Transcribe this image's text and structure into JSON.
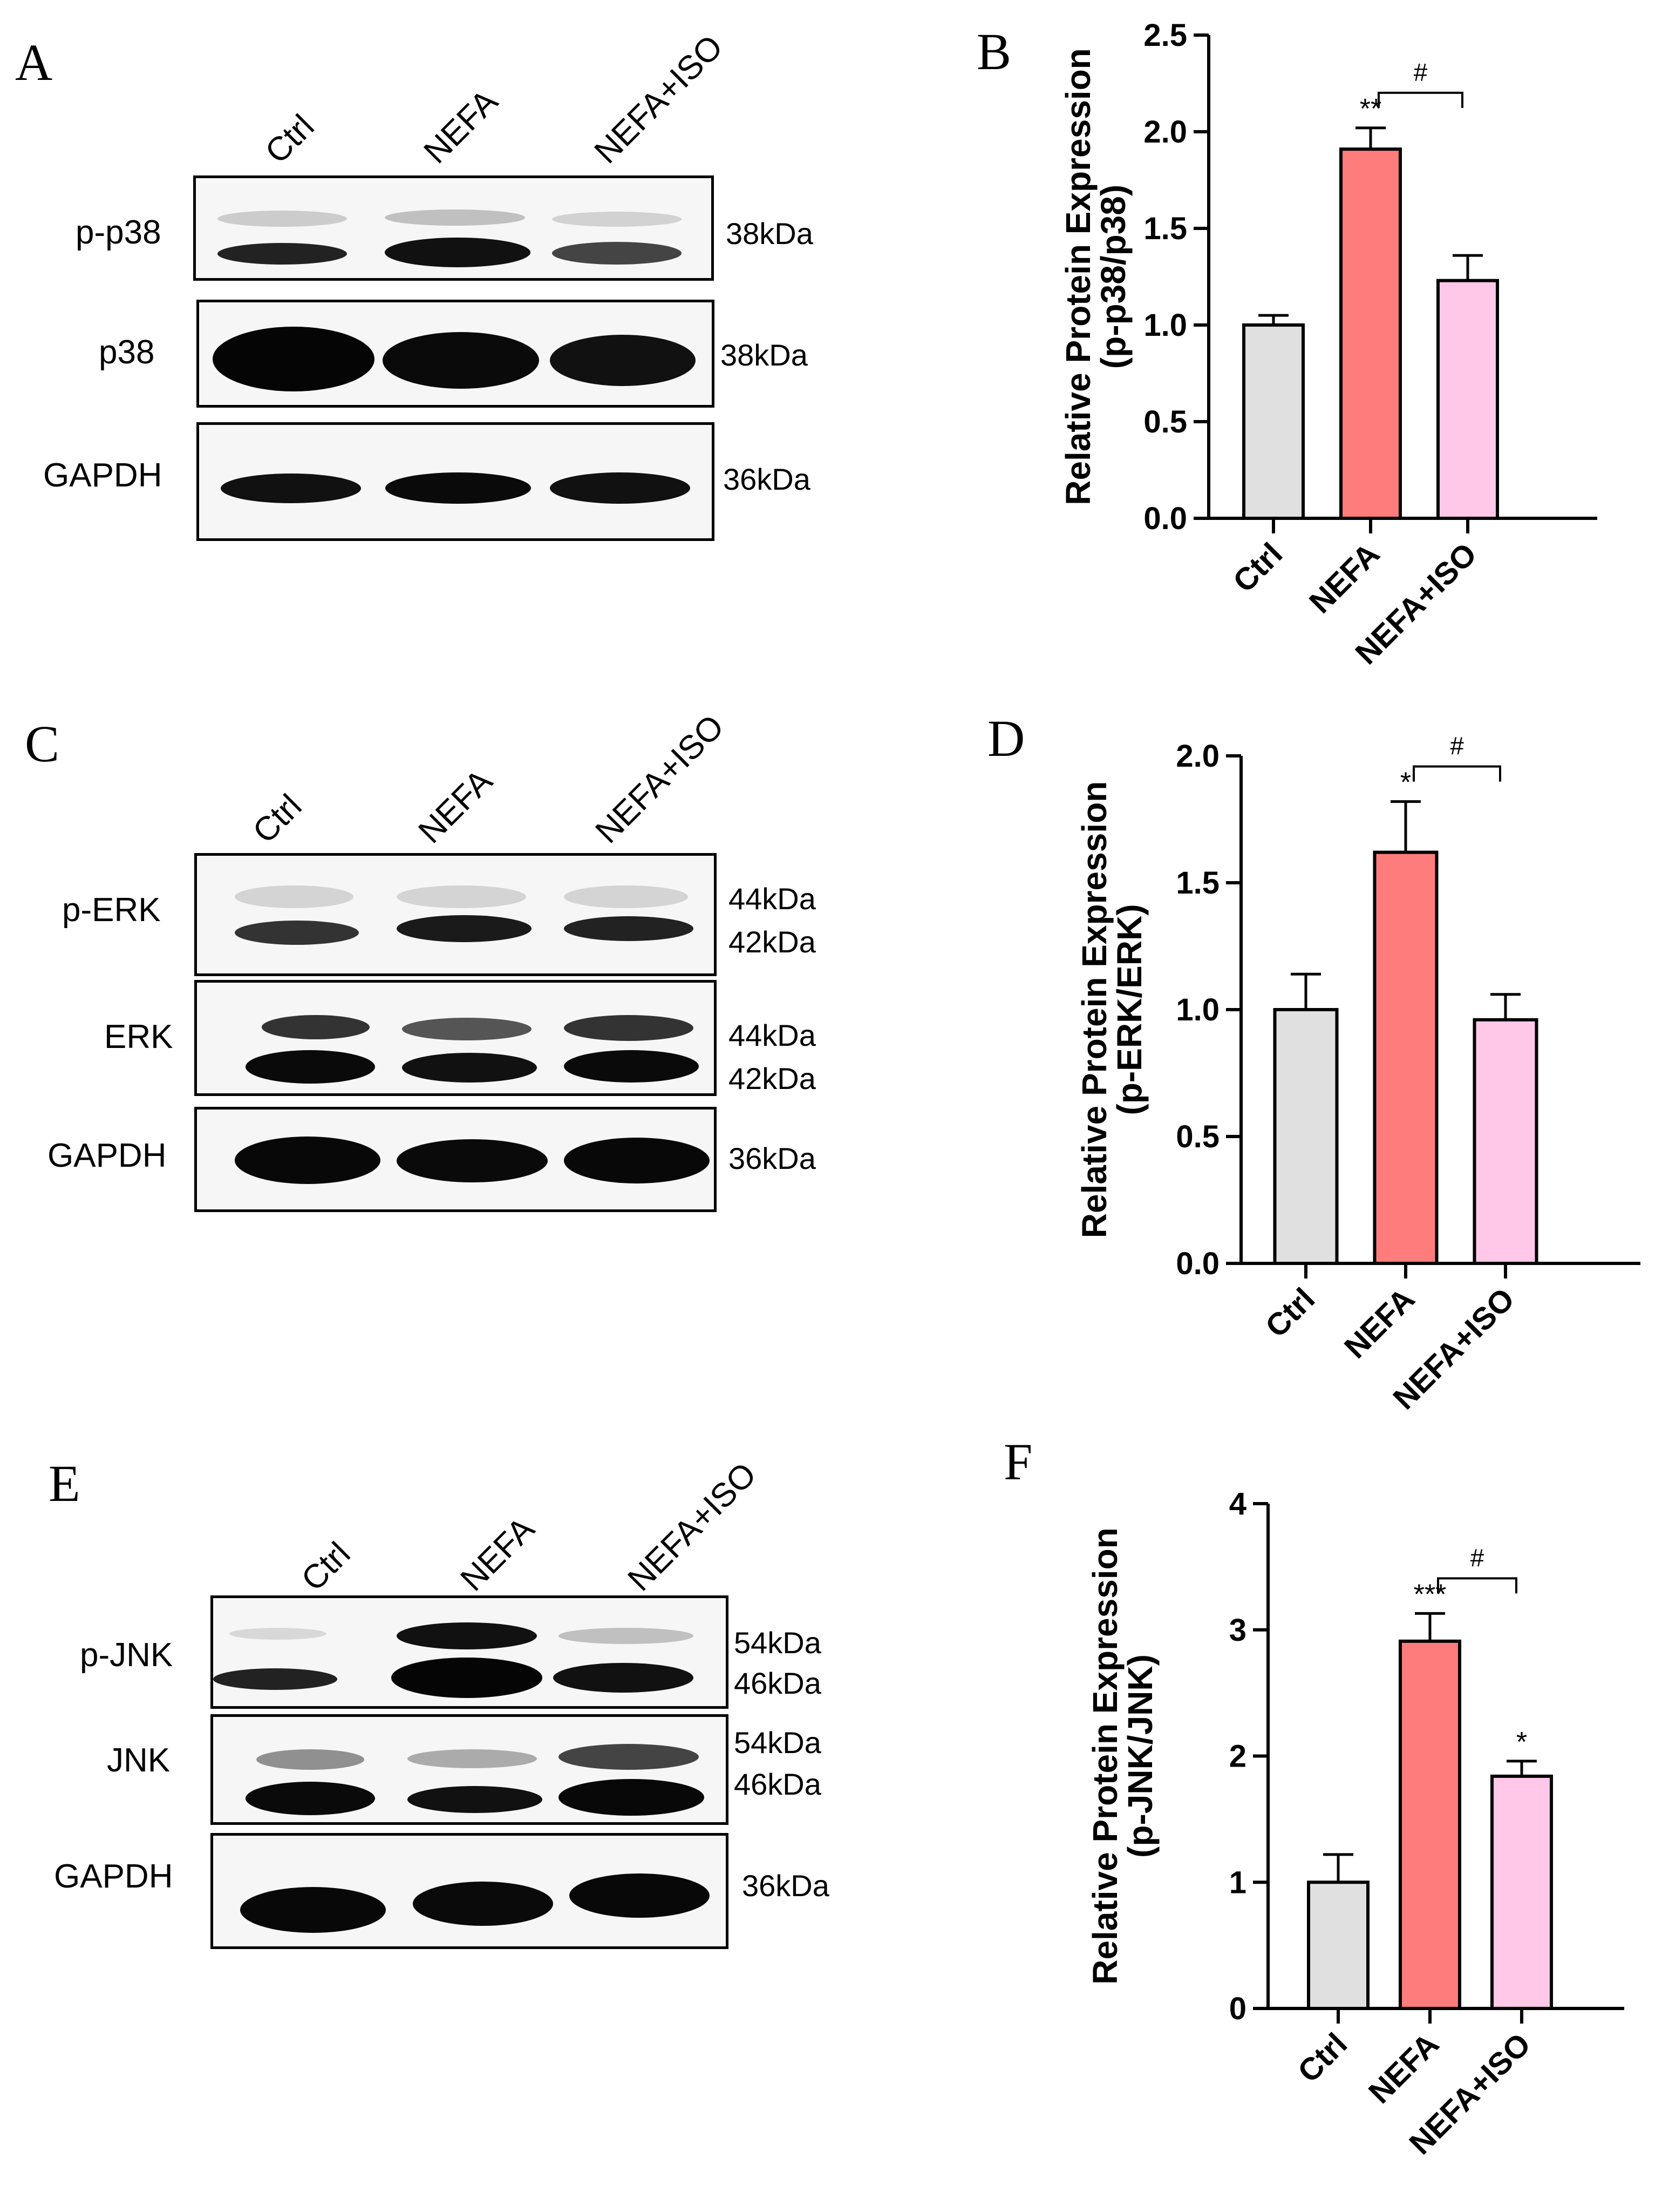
{
  "figure": {
    "panels": {
      "A": {
        "letter": "A",
        "lanes": [
          "Ctrl",
          "NEFA",
          "NEFA+ISO"
        ],
        "rows": [
          {
            "label": "p-p38",
            "kda": "38kDa"
          },
          {
            "label": "p38",
            "kda": "38kDa"
          },
          {
            "label": "GAPDH",
            "kda": "36kDa"
          }
        ]
      },
      "C": {
        "letter": "C",
        "lanes": [
          "Ctrl",
          "NEFA",
          "NEFA+ISO"
        ],
        "rows": [
          {
            "label": "p-ERK",
            "kda_top": "44kDa",
            "kda_bottom": "42kDa"
          },
          {
            "label": "ERK",
            "kda_top": "44kDa",
            "kda_bottom": "42kDa"
          },
          {
            "label": "GAPDH",
            "kda": "36kDa"
          }
        ]
      },
      "E": {
        "letter": "E",
        "lanes": [
          "Ctrl",
          "NEFA",
          "NEFA+ISO"
        ],
        "rows": [
          {
            "label": "p-JNK",
            "kda_top": "54kDa",
            "kda_bottom": "46kDa"
          },
          {
            "label": "JNK",
            "kda_top": "54kDa",
            "kda_bottom": "46kDa"
          },
          {
            "label": "GAPDH",
            "kda": "36kDa"
          }
        ]
      }
    },
    "bar_colors": [
      "#e0e0e0",
      "#ff7c7c",
      "#ffc8e8"
    ]
  },
  "chart_data": [
    {
      "panel": "B",
      "type": "bar",
      "categories": [
        "Ctrl",
        "NEFA",
        "NEFA+ISO"
      ],
      "values": [
        1.0,
        1.91,
        1.23
      ],
      "errors": [
        0.05,
        0.11,
        0.13
      ],
      "ylabel_line1": "Relative Protein Expression",
      "ylabel_line2": "(p-p38/p38)",
      "ylim": [
        0,
        2.5
      ],
      "yticks": [
        "0.0",
        "0.5",
        "1.0",
        "1.5",
        "2.0",
        "2.5"
      ],
      "significance": [
        "",
        "**",
        ""
      ],
      "bracket_label": "#"
    },
    {
      "panel": "D",
      "type": "bar",
      "categories": [
        "Ctrl",
        "NEFA",
        "NEFA+ISO"
      ],
      "values": [
        1.0,
        1.62,
        0.96
      ],
      "errors": [
        0.14,
        0.2,
        0.1
      ],
      "ylabel_line1": "Relative Protein Expression",
      "ylabel_line2": "(p-ERK/ERK)",
      "ylim": [
        0,
        2.0
      ],
      "yticks": [
        "0.0",
        "0.5",
        "1.0",
        "1.5",
        "2.0"
      ],
      "significance": [
        "",
        "*",
        ""
      ],
      "bracket_label": "#"
    },
    {
      "panel": "F",
      "type": "bar",
      "categories": [
        "Ctrl",
        "NEFA",
        "NEFA+ISO"
      ],
      "values": [
        1.0,
        2.91,
        1.84
      ],
      "errors": [
        0.22,
        0.22,
        0.12
      ],
      "ylabel_line1": "Relative Protein Expression",
      "ylabel_line2": "(p-JNK/JNK)",
      "ylim": [
        0,
        4
      ],
      "yticks": [
        "0",
        "1",
        "2",
        "3",
        "4"
      ],
      "significance": [
        "",
        "***",
        "*"
      ],
      "bracket_label": "#"
    }
  ]
}
